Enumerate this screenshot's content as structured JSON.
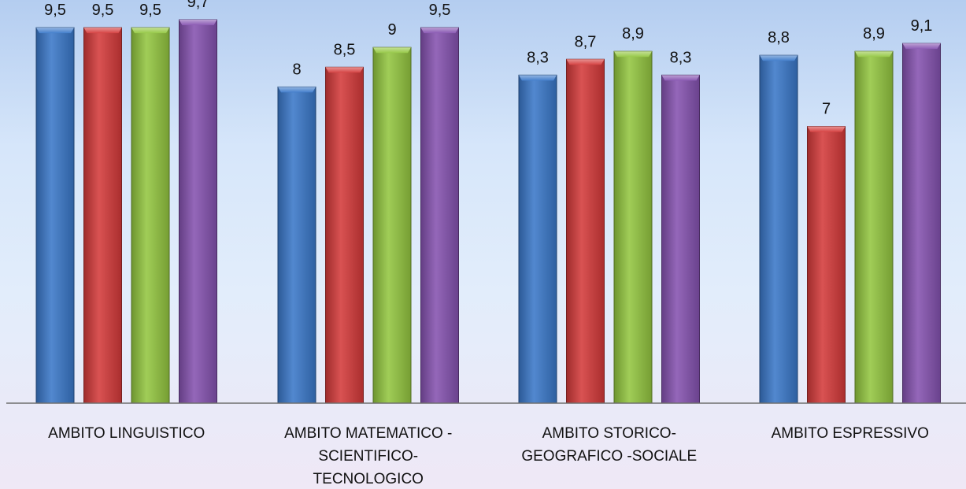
{
  "chart_data": {
    "type": "bar",
    "title": "",
    "xlabel": "",
    "ylabel": "",
    "ylim": [
      0,
      10
    ],
    "grid": false,
    "legend": "none",
    "categories": [
      [
        "AMBITO LINGUISTICO"
      ],
      [
        "AMBITO MATEMATICO -",
        "SCIENTIFICO-",
        "TECNOLOGICO"
      ],
      [
        "AMBITO STORICO-",
        "GEOGRAFICO -SOCIALE"
      ],
      [
        "AMBITO ESPRESSIVO"
      ]
    ],
    "series": [
      {
        "color": "#3a78c9",
        "values": [
          9.5,
          8,
          8.3,
          8.8
        ],
        "labels": [
          "9,5",
          "8",
          "8,3",
          "8,8"
        ]
      },
      {
        "color": "#d43a3a",
        "values": [
          9.5,
          8.5,
          8.7,
          7
        ],
        "labels": [
          "9,5",
          "8,5",
          "8,7",
          "7"
        ]
      },
      {
        "color": "#93c640",
        "values": [
          9.5,
          9,
          8.9,
          8.9
        ],
        "labels": [
          "9,5",
          "9",
          "8,9",
          "8,9"
        ]
      },
      {
        "color": "#8552b0",
        "values": [
          9.7,
          9.5,
          8.3,
          9.1
        ],
        "labels": [
          "9,7",
          "9,5",
          "8,3",
          "9,1"
        ]
      }
    ]
  }
}
